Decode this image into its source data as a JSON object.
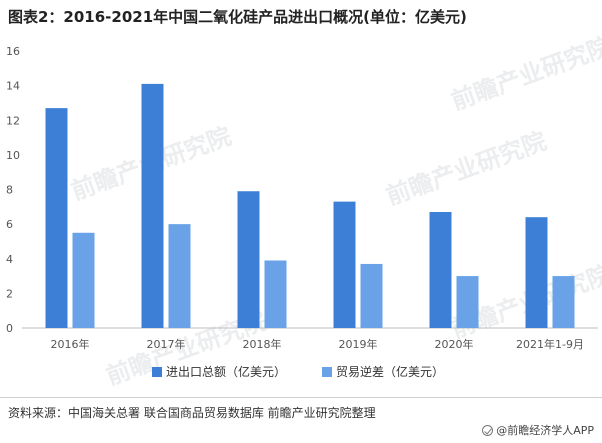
{
  "chart_data": {
    "type": "bar",
    "title": "图表2：2016-2021年中国二氧化硅产品进出口概况(单位：亿美元)",
    "categories": [
      "2016年",
      "2017年",
      "2018年",
      "2019年",
      "2020年",
      "2021年1-9月"
    ],
    "series": [
      {
        "name": "进出口总额（亿美元）",
        "color": "#3d7fd6",
        "values": [
          12.7,
          14.1,
          7.9,
          7.3,
          6.7,
          6.4
        ]
      },
      {
        "name": "贸易逆差（亿美元）",
        "color": "#6aa2e8",
        "values": [
          5.5,
          6.0,
          3.9,
          3.7,
          3.0,
          3.0
        ]
      }
    ],
    "yticks": [
      0,
      2,
      4,
      6,
      8,
      10,
      12,
      14,
      16
    ],
    "ylim": [
      0,
      16
    ],
    "xlabel": "",
    "ylabel": "",
    "grid": false,
    "legend": "bottom"
  },
  "watermark": "前瞻产业研究院",
  "footer": {
    "source": "资料来源：中国海关总署 联合国商品贸易数据库 前瞻产业研究院整理",
    "brand": "@前瞻经济学人APP"
  }
}
